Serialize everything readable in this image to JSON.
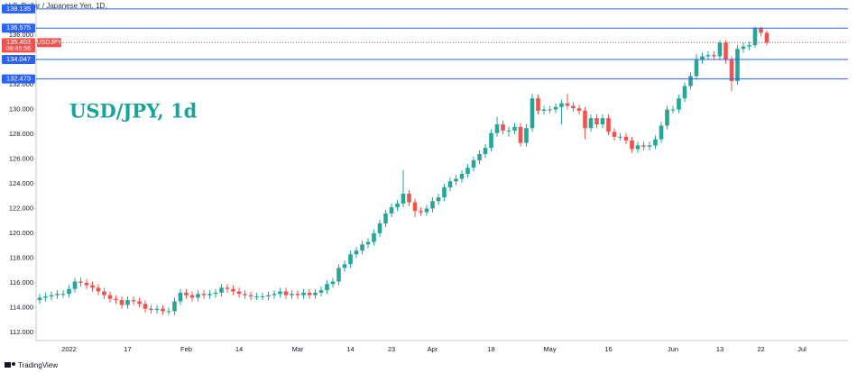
{
  "chart_data": {
    "type": "candlestick",
    "header": "U.S. Dollar / Japanese Yen, 1D,",
    "title": "USD/JPY, 1d",
    "brand": "TradingView",
    "categories": [
      null,
      null,
      null,
      null,
      null,
      "2022",
      null,
      null,
      null,
      null,
      null,
      null,
      null,
      null,
      null,
      "17",
      null,
      null,
      null,
      null,
      null,
      null,
      null,
      null,
      null,
      "Feb",
      null,
      null,
      null,
      null,
      null,
      null,
      null,
      null,
      "14",
      null,
      null,
      null,
      null,
      null,
      null,
      null,
      null,
      null,
      "Mar",
      null,
      null,
      null,
      null,
      null,
      null,
      null,
      null,
      "14",
      null,
      null,
      null,
      null,
      null,
      null,
      "23",
      null,
      null,
      null,
      null,
      null,
      null,
      "Apr",
      null,
      null,
      null,
      null,
      null,
      null,
      null,
      null,
      null,
      "18",
      null,
      null,
      null,
      null,
      null,
      null,
      null,
      null,
      null,
      "May",
      null,
      null,
      null,
      null,
      null,
      null,
      null,
      null,
      null,
      "16",
      null,
      null,
      null,
      null,
      null,
      null,
      null,
      null,
      null,
      null,
      "Jun",
      null,
      null,
      null,
      null,
      null,
      null,
      null,
      "13",
      null,
      null,
      null,
      null,
      null,
      null,
      "22",
      null,
      null,
      null,
      null,
      null,
      null,
      "Jul"
    ],
    "open": [
      114.6,
      114.8,
      114.9,
      115.0,
      115.1,
      115.1,
      115.5,
      116.1,
      116.0,
      115.8,
      115.6,
      115.3,
      115.0,
      114.7,
      114.6,
      114.2,
      114.6,
      114.5,
      114.3,
      113.9,
      113.8,
      113.9,
      113.7,
      113.7,
      114.5,
      115.2,
      115.0,
      114.8,
      115.1,
      115.0,
      115.1,
      115.2,
      115.6,
      115.5,
      115.3,
      115.1,
      115.0,
      114.9,
      114.9,
      114.9,
      115.0,
      115.1,
      115.3,
      115.0,
      115.1,
      115.0,
      115.2,
      115.0,
      115.2,
      115.4,
      115.9,
      116.1,
      117.2,
      117.5,
      118.3,
      118.6,
      119.1,
      119.3,
      120.0,
      120.8,
      121.6,
      122.1,
      122.4,
      123.2,
      122.5,
      121.8,
      121.7,
      122.0,
      122.6,
      122.9,
      123.7,
      124.2,
      124.4,
      124.8,
      125.3,
      125.9,
      126.4,
      126.9,
      128.1,
      128.8,
      128.3,
      128.3,
      128.6,
      127.3,
      128.5,
      130.9,
      129.9,
      130.0,
      130.0,
      130.2,
      130.5,
      130.3,
      130.1,
      129.9,
      128.5,
      129.3,
      128.8,
      129.3,
      128.2,
      127.8,
      127.8,
      127.5,
      126.8,
      127.1,
      127.0,
      127.1,
      127.6,
      128.7,
      130.0,
      130.0,
      130.9,
      131.9,
      132.7,
      134.0,
      134.3,
      134.4,
      134.3,
      135.4,
      134.0,
      132.3,
      134.9,
      135.1,
      135.2,
      136.6,
      136.2,
      null,
      null,
      null,
      null,
      null,
      null
    ],
    "high": [
      115.1,
      115.2,
      115.3,
      115.4,
      115.4,
      115.8,
      116.4,
      116.4,
      116.3,
      116.1,
      115.9,
      115.6,
      115.3,
      115.0,
      114.9,
      114.9,
      114.9,
      114.8,
      114.6,
      114.2,
      114.2,
      114.2,
      114.0,
      114.8,
      115.5,
      115.5,
      115.3,
      115.4,
      115.4,
      115.4,
      115.5,
      115.9,
      115.9,
      115.8,
      115.6,
      115.4,
      115.3,
      115.2,
      115.2,
      115.3,
      115.4,
      115.6,
      115.6,
      115.4,
      115.4,
      115.5,
      115.5,
      115.5,
      115.7,
      116.2,
      116.4,
      117.5,
      117.8,
      118.6,
      118.9,
      119.4,
      119.6,
      120.3,
      121.1,
      121.9,
      122.4,
      122.7,
      125.1,
      123.5,
      122.8,
      122.1,
      122.3,
      122.9,
      123.2,
      124.0,
      124.5,
      124.7,
      125.1,
      125.6,
      126.2,
      126.7,
      127.2,
      128.4,
      129.4,
      129.1,
      128.6,
      128.9,
      128.9,
      128.8,
      131.3,
      131.2,
      130.3,
      130.3,
      130.5,
      130.8,
      131.3,
      130.6,
      130.4,
      130.2,
      129.6,
      129.6,
      129.6,
      129.6,
      128.5,
      128.1,
      128.1,
      127.8,
      127.4,
      127.4,
      127.4,
      127.9,
      129.0,
      130.3,
      130.3,
      131.2,
      132.2,
      133.0,
      134.5,
      134.6,
      134.7,
      134.7,
      135.6,
      135.6,
      134.3,
      135.2,
      135.4,
      135.5,
      136.7,
      136.7,
      136.4,
      null,
      null,
      null,
      null,
      null,
      null
    ],
    "low": [
      114.3,
      114.5,
      114.6,
      114.7,
      114.8,
      114.8,
      115.2,
      115.7,
      115.5,
      115.3,
      115.0,
      114.7,
      114.4,
      114.3,
      113.9,
      113.9,
      114.2,
      114.0,
      113.6,
      113.5,
      113.5,
      113.4,
      113.4,
      113.4,
      114.2,
      114.7,
      114.5,
      114.5,
      114.7,
      114.7,
      114.8,
      114.9,
      115.2,
      115.0,
      114.8,
      114.7,
      114.6,
      114.6,
      114.6,
      114.6,
      114.7,
      114.8,
      114.7,
      114.7,
      114.7,
      114.7,
      114.7,
      114.7,
      114.9,
      115.1,
      115.6,
      115.8,
      116.9,
      117.2,
      118.0,
      118.3,
      118.8,
      119.0,
      119.7,
      120.5,
      121.3,
      121.8,
      122.1,
      122.2,
      121.3,
      121.4,
      121.4,
      121.7,
      122.3,
      122.6,
      123.4,
      123.9,
      124.1,
      124.5,
      125.0,
      125.6,
      126.1,
      126.6,
      127.8,
      128.0,
      127.8,
      128.0,
      127.0,
      127.0,
      128.2,
      129.6,
      129.6,
      129.7,
      129.7,
      128.8,
      130.0,
      129.8,
      129.6,
      127.6,
      128.2,
      128.5,
      128.5,
      127.9,
      127.5,
      127.5,
      127.2,
      126.5,
      126.5,
      126.7,
      126.7,
      126.8,
      127.3,
      128.4,
      129.7,
      129.7,
      130.6,
      131.6,
      132.4,
      133.7,
      134.0,
      134.0,
      134.0,
      133.7,
      131.5,
      132.0,
      134.6,
      134.8,
      135.0,
      135.9,
      135.2,
      null,
      null,
      null,
      null,
      null,
      null
    ],
    "close": [
      114.8,
      114.9,
      115.0,
      115.1,
      115.1,
      115.5,
      116.1,
      116.0,
      115.8,
      115.6,
      115.3,
      115.0,
      114.7,
      114.6,
      114.2,
      114.6,
      114.5,
      114.3,
      113.9,
      113.8,
      113.9,
      113.7,
      113.7,
      114.5,
      115.2,
      115.0,
      114.8,
      115.1,
      115.0,
      115.1,
      115.2,
      115.6,
      115.5,
      115.3,
      115.1,
      115.0,
      114.9,
      114.9,
      114.9,
      115.0,
      115.1,
      115.3,
      115.0,
      115.1,
      115.0,
      115.2,
      115.0,
      115.2,
      115.4,
      115.9,
      116.1,
      117.2,
      117.5,
      118.3,
      118.6,
      119.1,
      119.3,
      120.0,
      120.8,
      121.6,
      122.1,
      122.4,
      123.2,
      122.5,
      121.8,
      121.7,
      122.0,
      122.6,
      122.9,
      123.7,
      124.2,
      124.4,
      124.8,
      125.3,
      125.9,
      126.4,
      126.9,
      128.1,
      128.8,
      128.3,
      128.3,
      128.6,
      127.3,
      128.5,
      130.9,
      129.9,
      130.0,
      130.0,
      130.2,
      130.5,
      130.3,
      130.1,
      129.9,
      128.5,
      129.3,
      128.8,
      129.3,
      128.2,
      127.8,
      127.8,
      127.5,
      126.8,
      127.1,
      127.0,
      127.1,
      127.6,
      128.7,
      130.0,
      130.0,
      130.9,
      131.9,
      132.7,
      134.0,
      134.3,
      134.4,
      134.3,
      135.4,
      134.0,
      132.3,
      134.9,
      135.1,
      135.2,
      136.6,
      136.2,
      135.4,
      null,
      null,
      null,
      null,
      null,
      null
    ],
    "up_color": "#26a69a",
    "down_color": "#ef5350",
    "levels": [
      138.135,
      136.575,
      134.047,
      132.473
    ],
    "level_color": "#2962ff",
    "last_price": {
      "value": 135.403,
      "symbol": "USDJPY",
      "countdown": "08:45:56"
    },
    "ylim": [
      111.33,
      138.85
    ],
    "yticks": [
      {
        "value": 112,
        "label": "112.000"
      },
      {
        "value": 114,
        "label": "114.000"
      },
      {
        "value": 116,
        "label": "116.000"
      },
      {
        "value": 118,
        "label": "118.000"
      },
      {
        "value": 120,
        "label": "120.000"
      },
      {
        "value": 122,
        "label": "122.000"
      },
      {
        "value": 124,
        "label": "124.000"
      },
      {
        "value": 126,
        "label": "126.000"
      },
      {
        "value": 128,
        "label": "128.000"
      },
      {
        "value": 130,
        "label": "130.000"
      },
      {
        "value": 132,
        "label": "132.000"
      },
      {
        "value": 134,
        "label": "134.000"
      },
      {
        "value": 136,
        "label": "136.000"
      }
    ]
  }
}
